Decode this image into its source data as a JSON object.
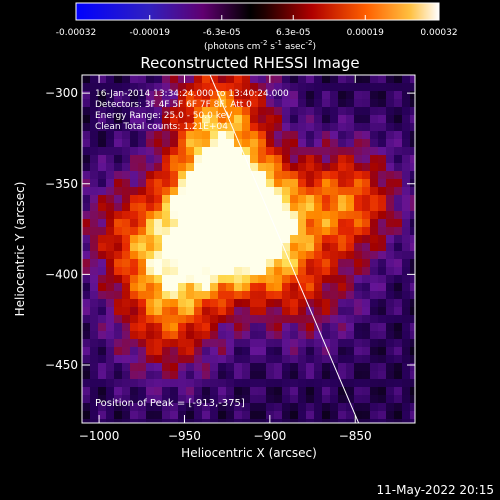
{
  "colorbar": {
    "ticks": [
      "-0.00032",
      "-0.00019",
      "-6.3e-05",
      "6.3e-05",
      "0.00019",
      "0.00032"
    ],
    "tick_values": [
      -0.00032,
      -0.00019,
      -6.3e-05,
      6.3e-05,
      0.00019,
      0.00032
    ],
    "units_label": "(photons cm",
    "units_label_sup1": "-2",
    "units_label_mid": " s",
    "units_label_sup2": "-1",
    "units_label_end": " asec",
    "units_label_sup3": "-2",
    "units_label_close": ")"
  },
  "chart_data": {
    "type": "heatmap",
    "title": "Reconstructed RHESSI Image",
    "xlabel": "Heliocentric X (arcsec)",
    "ylabel": "Heliocentric Y (arcsec)",
    "xlim": [
      -1010,
      -815
    ],
    "ylim": [
      -482,
      -290
    ],
    "x_ticks": [
      -1000,
      -950,
      -900,
      -850
    ],
    "y_ticks": [
      -300,
      -350,
      -400,
      -450
    ],
    "x_tick_labels": [
      "−1000",
      "−950",
      "−900",
      "−850"
    ],
    "y_tick_labels": [
      "−300",
      "−350",
      "−400",
      "−450"
    ],
    "value_range": [
      -0.00032,
      0.00032
    ],
    "sources": [
      {
        "x": -913,
        "y": -375,
        "amp": 1.0
      },
      {
        "x": -930,
        "y": -355,
        "amp": 0.75
      },
      {
        "x": -955,
        "y": -395,
        "amp": 0.55
      },
      {
        "x": -930,
        "y": -310,
        "amp": 0.55
      },
      {
        "x": -855,
        "y": -360,
        "amp": 0.55
      },
      {
        "x": -960,
        "y": -430,
        "amp": 0.35
      },
      {
        "x": -985,
        "y": -375,
        "amp": 0.3
      },
      {
        "x": -880,
        "y": -410,
        "amp": 0.3
      }
    ],
    "limb_line": {
      "x": [
        -935,
        -848
      ],
      "y": [
        -290,
        -482
      ]
    },
    "annotations": [
      "16-Jan-2014 13:34:24.000 to 13:40:24.000",
      "Detectors: 3F 4F 5F 6F 7F 8F, Att 0",
      "Energy Range: 25.0 - 50.0 keV",
      "Clean     Total counts: 1.21E+04"
    ],
    "peak_label": "Position of Peak = [-913,-375]"
  },
  "footer": {
    "timestamp": "11-May-2022 20:15"
  }
}
